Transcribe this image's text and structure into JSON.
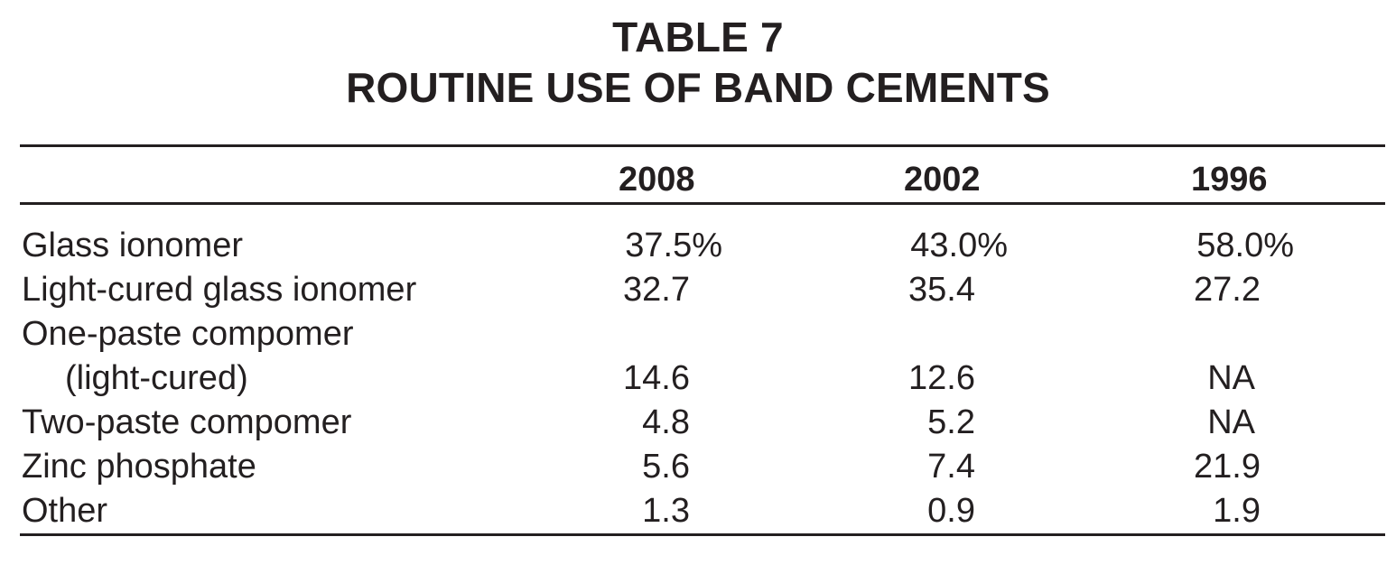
{
  "table": {
    "title_line1": "TABLE 7",
    "title_line2": "ROUTINE USE OF BAND CEMENTS",
    "columns": [
      "2008",
      "2002",
      "1996"
    ],
    "rows": [
      {
        "label": "Glass ionomer",
        "values": [
          "37.5%",
          "43.0%",
          "58.0%"
        ]
      },
      {
        "label": "Light-cured glass ionomer",
        "values": [
          "32.7",
          "35.4",
          "27.2"
        ]
      },
      {
        "label": "One-paste compomer",
        "label_cont": "(light-cured)",
        "values": [
          "14.6",
          "12.6",
          "NA"
        ]
      },
      {
        "label": "Two-paste compomer",
        "values": [
          "4.8",
          "5.2",
          "NA"
        ]
      },
      {
        "label": "Zinc phosphate",
        "values": [
          "5.6",
          "7.4",
          "21.9"
        ]
      },
      {
        "label": "Other",
        "values": [
          "1.3",
          "0.9",
          "1.9"
        ]
      }
    ]
  }
}
